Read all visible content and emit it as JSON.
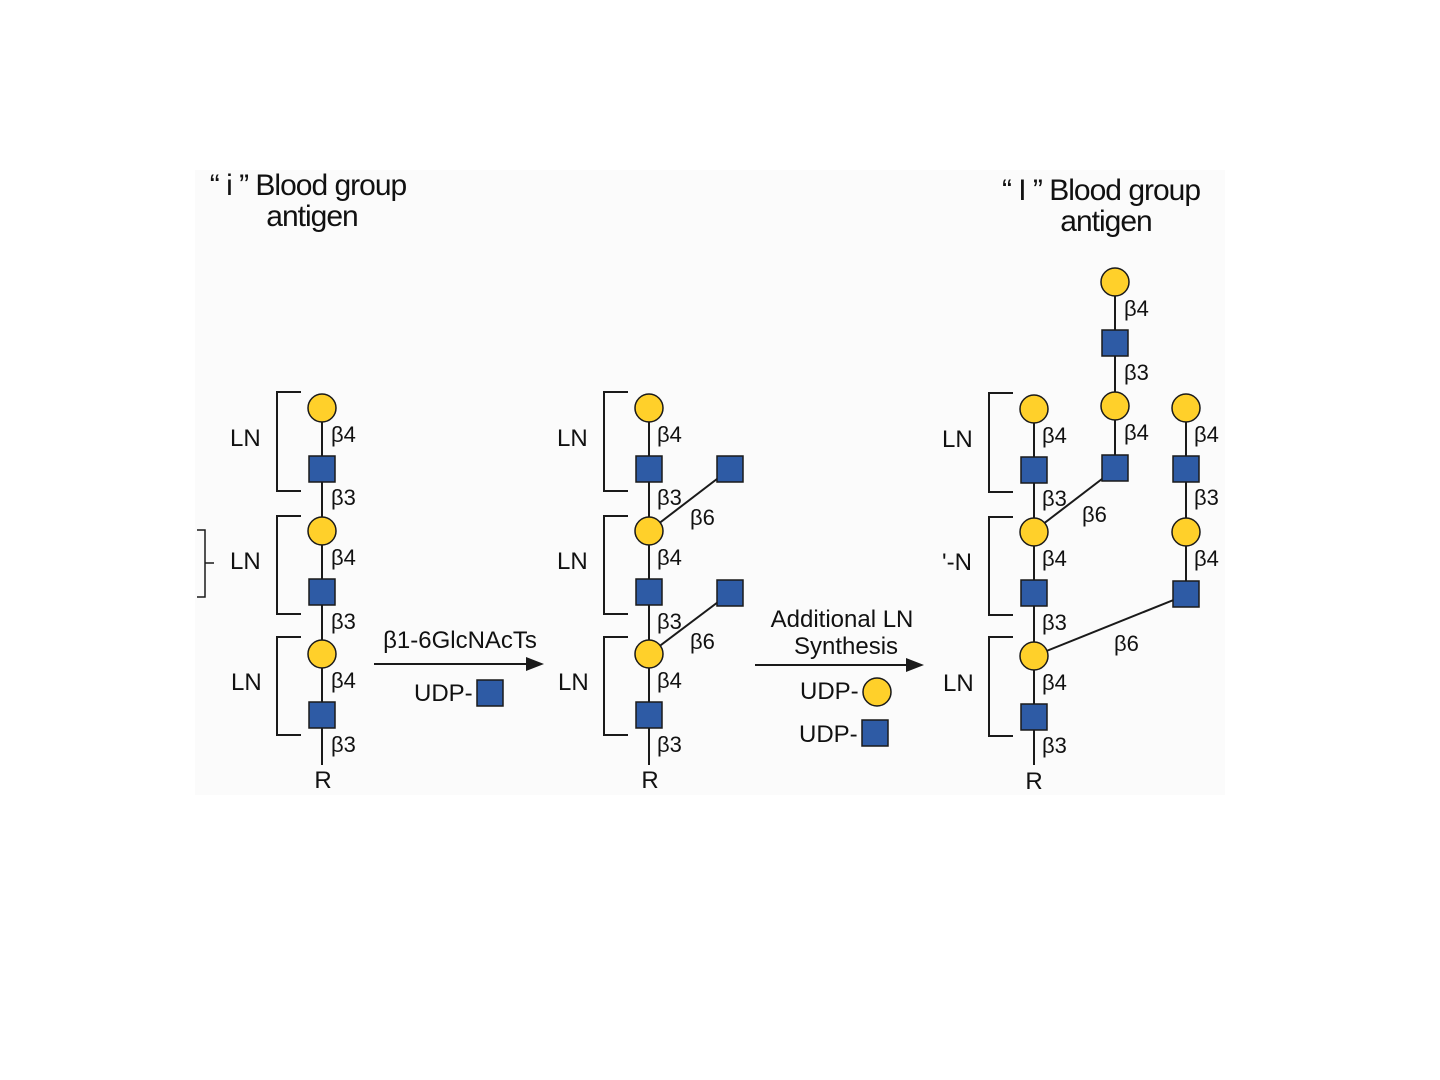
{
  "titles": {
    "left_line1": "“ i ” Blood group",
    "left_line2": "antigen",
    "right_line1": "“ I ” Blood group",
    "right_line2": "antigen"
  },
  "labels": {
    "ln": "LN",
    "ln_partial": "'-N",
    "reducing_end": "R"
  },
  "linkages": {
    "b3": "β3",
    "b4": "β4",
    "b6": "β6"
  },
  "step1": {
    "enzyme": "β1-6GlcNAcTs",
    "donor_prefix": "UDP-"
  },
  "step2": {
    "line1": "Additional LN",
    "line2": "Synthesis",
    "donor_prefix": "UDP-"
  },
  "colors": {
    "galactose": "#FFD02A",
    "glcnac": "#2E5BA5",
    "outline": "#1a1a1a",
    "background_panel": "#FBFBFB"
  },
  "icons": {
    "galactose": "yellow-circle",
    "glcnac": "blue-square"
  }
}
